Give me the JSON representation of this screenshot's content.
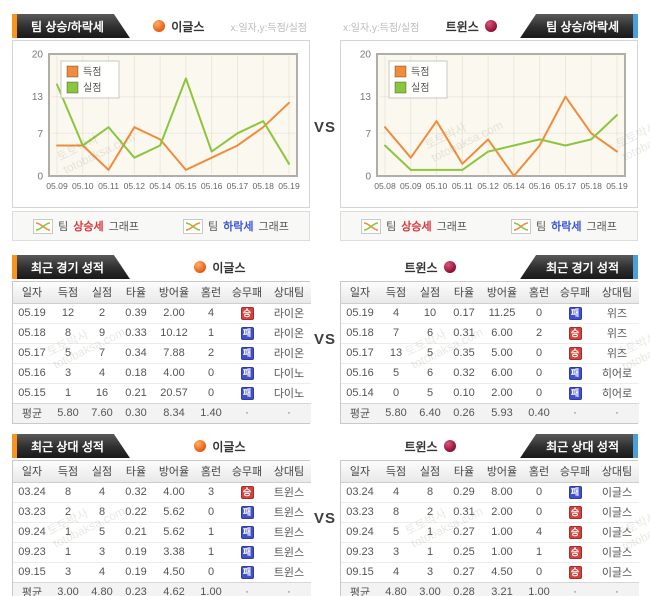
{
  "vs_label": "VS",
  "watermark": {
    "name": "토토박사",
    "domain": "totobaksa.com"
  },
  "colors": {
    "scored_line": "#F08C3C",
    "conceded_line": "#8CC63E",
    "win_badge": "#D6413C",
    "lose_badge": "#4050CE",
    "accent_left": "#F7941D",
    "accent_right": "#4BA0DC",
    "uptrend_text": "#D9363C",
    "downtrend_text": "#3B54D9"
  },
  "teams": {
    "left": {
      "name": "이글스"
    },
    "right": {
      "name": "트윈스"
    }
  },
  "trend_section": {
    "title": "팀 상승/하락세",
    "axis_note": "x:일자,y:득점/실점",
    "buttons": {
      "up": {
        "prefix": "팀",
        "keyword": "상승세",
        "suffix": "그래프"
      },
      "down": {
        "prefix": "팀",
        "keyword": "하락세",
        "suffix": "그래프"
      }
    }
  },
  "chart_data": [
    {
      "type": "line",
      "team": "이글스",
      "x": [
        "05.09",
        "05.10",
        "05.11",
        "05.12",
        "05.14",
        "05.15",
        "05.16",
        "05.17",
        "05.18",
        "05.19"
      ],
      "series": [
        {
          "name": "득점",
          "color": "#F08C3C",
          "values": [
            5,
            5,
            1,
            8,
            6,
            1,
            3,
            5,
            8,
            12
          ]
        },
        {
          "name": "실점",
          "color": "#8CC63E",
          "values": [
            15,
            5,
            8,
            3,
            5,
            16,
            4,
            7,
            9,
            2
          ]
        }
      ],
      "ylim": [
        0,
        20
      ],
      "yticks": [
        0,
        7,
        13,
        20
      ],
      "legend_position": "top-left",
      "grid": true
    },
    {
      "type": "line",
      "team": "트윈스",
      "x": [
        "05.08",
        "05.09",
        "05.10",
        "05.11",
        "05.12",
        "05.14",
        "05.16",
        "05.17",
        "05.18",
        "05.19"
      ],
      "series": [
        {
          "name": "득점",
          "color": "#F08C3C",
          "values": [
            8,
            3,
            9,
            2,
            6,
            0,
            5,
            13,
            7,
            4
          ]
        },
        {
          "name": "실점",
          "color": "#8CC63E",
          "values": [
            5,
            1,
            1,
            1,
            4,
            5,
            6,
            5,
            6,
            10
          ]
        }
      ],
      "ylim": [
        0,
        20
      ],
      "yticks": [
        0,
        7,
        13,
        20
      ],
      "legend_position": "top-left",
      "grid": true
    }
  ],
  "recent_games": {
    "title": "최근 경기 성적",
    "columns": [
      "일자",
      "득점",
      "실점",
      "타율",
      "방어율",
      "홈런",
      "승무패",
      "상대팀"
    ],
    "left": {
      "rows": [
        [
          "05.19",
          "12",
          "2",
          "0.39",
          "2.00",
          "4",
          "승",
          "라이온"
        ],
        [
          "05.18",
          "8",
          "9",
          "0.33",
          "10.12",
          "1",
          "패",
          "라이온"
        ],
        [
          "05.17",
          "5",
          "7",
          "0.34",
          "7.88",
          "2",
          "패",
          "라이온"
        ],
        [
          "05.16",
          "3",
          "4",
          "0.18",
          "4.00",
          "0",
          "패",
          "다이노"
        ],
        [
          "05.15",
          "1",
          "16",
          "0.21",
          "20.57",
          "0",
          "패",
          "다이노"
        ]
      ],
      "avg": [
        "평균",
        "5.80",
        "7.60",
        "0.30",
        "8.34",
        "1.40",
        "·",
        "·"
      ]
    },
    "right": {
      "rows": [
        [
          "05.19",
          "4",
          "10",
          "0.17",
          "11.25",
          "0",
          "패",
          "위즈"
        ],
        [
          "05.18",
          "7",
          "6",
          "0.31",
          "6.00",
          "2",
          "승",
          "위즈"
        ],
        [
          "05.17",
          "13",
          "5",
          "0.35",
          "5.00",
          "0",
          "승",
          "위즈"
        ],
        [
          "05.16",
          "5",
          "6",
          "0.32",
          "6.00",
          "0",
          "패",
          "히어로"
        ],
        [
          "05.14",
          "0",
          "5",
          "0.10",
          "2.00",
          "0",
          "패",
          "히어로"
        ]
      ],
      "avg": [
        "평균",
        "5.80",
        "6.40",
        "0.26",
        "5.93",
        "0.40",
        "·",
        "·"
      ]
    }
  },
  "recent_vs": {
    "title": "최근 상대 성적",
    "columns": [
      "일자",
      "득점",
      "실점",
      "타율",
      "방어율",
      "홈런",
      "승무패",
      "상대팀"
    ],
    "left": {
      "rows": [
        [
          "03.24",
          "8",
          "4",
          "0.32",
          "4.00",
          "3",
          "승",
          "트윈스"
        ],
        [
          "03.23",
          "2",
          "8",
          "0.22",
          "5.62",
          "0",
          "패",
          "트윈스"
        ],
        [
          "09.24",
          "1",
          "5",
          "0.21",
          "5.62",
          "1",
          "패",
          "트윈스"
        ],
        [
          "09.23",
          "1",
          "3",
          "0.19",
          "3.38",
          "1",
          "패",
          "트윈스"
        ],
        [
          "09.15",
          "3",
          "4",
          "0.19",
          "4.50",
          "0",
          "패",
          "트윈스"
        ]
      ],
      "avg": [
        "평균",
        "3.00",
        "4.80",
        "0.23",
        "4.62",
        "1.00",
        "·",
        "·"
      ]
    },
    "right": {
      "rows": [
        [
          "03.24",
          "4",
          "8",
          "0.29",
          "8.00",
          "0",
          "패",
          "이글스"
        ],
        [
          "03.23",
          "8",
          "2",
          "0.31",
          "2.00",
          "0",
          "승",
          "이글스"
        ],
        [
          "09.24",
          "5",
          "1",
          "0.27",
          "1.00",
          "4",
          "승",
          "이글스"
        ],
        [
          "09.23",
          "3",
          "1",
          "0.25",
          "1.00",
          "1",
          "승",
          "이글스"
        ],
        [
          "09.15",
          "4",
          "3",
          "0.27",
          "4.50",
          "0",
          "승",
          "이글스"
        ]
      ],
      "avg": [
        "평균",
        "4.80",
        "3.00",
        "0.28",
        "3.21",
        "1.00",
        "·",
        "·"
      ]
    }
  }
}
